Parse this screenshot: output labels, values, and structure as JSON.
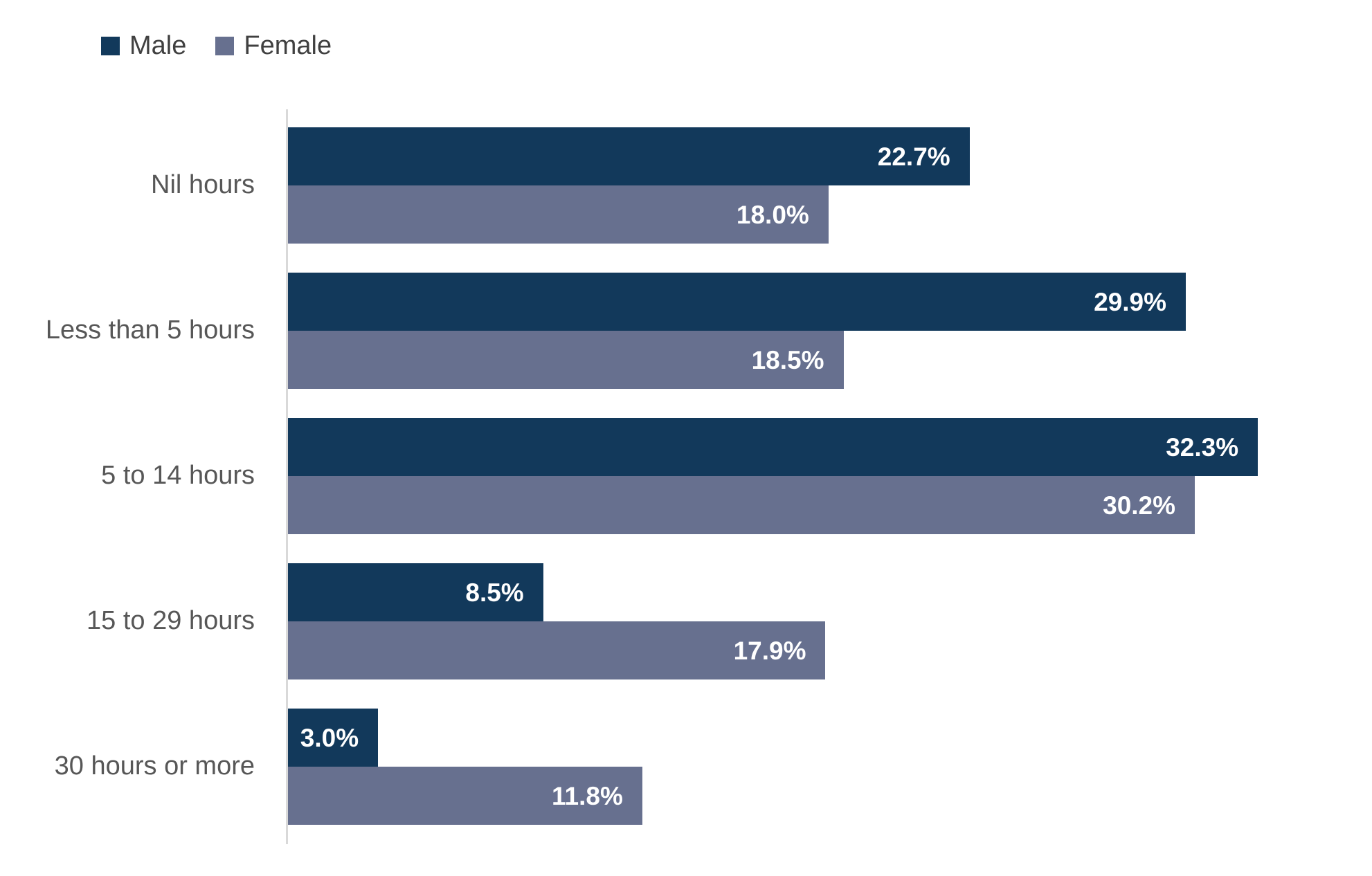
{
  "legend": {
    "items": [
      {
        "label": "Male",
        "color": "#12395B"
      },
      {
        "label": "Female",
        "color": "#67708F"
      }
    ]
  },
  "chart_data": {
    "type": "bar",
    "orientation": "horizontal",
    "title": "",
    "xlabel": "",
    "ylabel": "",
    "categories": [
      "Nil hours",
      "Less than 5 hours",
      "5 to 14 hours",
      "15 to 29 hours",
      "30 hours or more"
    ],
    "series": [
      {
        "name": "Male",
        "color": "#12395B",
        "values": [
          22.7,
          29.9,
          32.3,
          8.5,
          3.0
        ],
        "labels": [
          "22.7%",
          "29.9%",
          "32.3%",
          "8.5%",
          "3.0%"
        ]
      },
      {
        "name": "Female",
        "color": "#67708F",
        "values": [
          18.0,
          18.5,
          30.2,
          17.9,
          11.8
        ],
        "labels": [
          "18.0%",
          "18.5%",
          "30.2%",
          "17.9%",
          "11.8%"
        ]
      }
    ],
    "value_suffix": "%",
    "xlim": [
      0,
      36.1
    ],
    "grid": false,
    "legend_position": "top-left",
    "value_labels": "inside-end"
  },
  "colors": {
    "background": "#FFFFFF",
    "axis_line": "#D9D9D9",
    "category_label": "#575757",
    "value_label": "#FFFFFF",
    "legend_text": "#404040"
  }
}
